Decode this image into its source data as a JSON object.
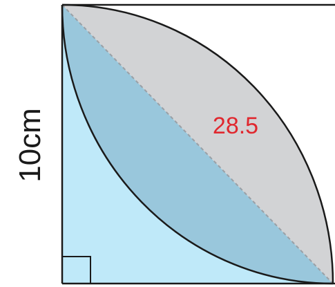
{
  "side_label": "10cm",
  "area_label": "28.5",
  "colors": {
    "light_blue": "#bfe9f9",
    "mid_blue": "#99c7dc",
    "grey": "#d2d3d5",
    "outline": "#1a1a1a",
    "diagonal": "#9aa0a6",
    "label_red": "#e0282f"
  }
}
